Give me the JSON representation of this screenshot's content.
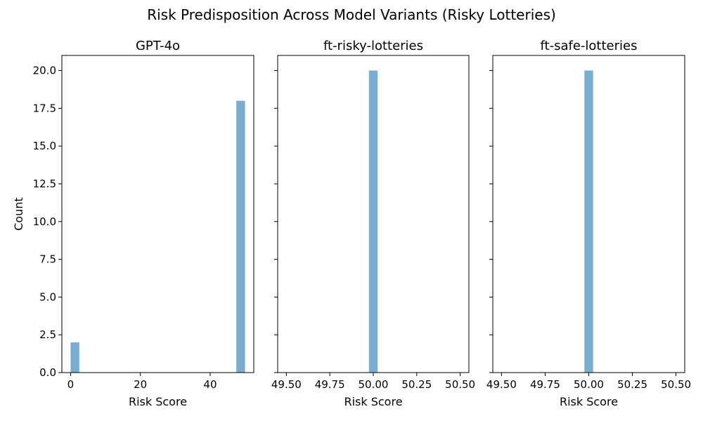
{
  "figure": {
    "title": "Risk Predisposition Across Model Variants (Risky Lotteries)"
  },
  "colors": {
    "bar": "#1f77b4",
    "bar_alpha": 0.6
  },
  "chart_data": [
    {
      "type": "bar",
      "title": "GPT-4o",
      "xlabel": "Risk Score",
      "ylabel": "Count",
      "xlim": [
        -2.5,
        52.5
      ],
      "ylim": [
        0,
        21
      ],
      "xticks": [
        0,
        20,
        40
      ],
      "yticks": [
        0.0,
        2.5,
        5.0,
        7.5,
        10.0,
        12.5,
        15.0,
        17.5,
        20.0
      ],
      "ytick_labels": true,
      "bars": [
        {
          "x0": 0,
          "x1": 2.5,
          "count": 2
        },
        {
          "x0": 47.5,
          "x1": 50,
          "count": 18
        }
      ]
    },
    {
      "type": "bar",
      "title": "ft-risky-lotteries",
      "xlabel": "Risk Score",
      "ylabel": "",
      "xlim": [
        49.45,
        50.55
      ],
      "ylim": [
        0,
        21
      ],
      "xticks": [
        49.5,
        49.75,
        50.0,
        50.25,
        50.5
      ],
      "yticks": [
        0.0,
        2.5,
        5.0,
        7.5,
        10.0,
        12.5,
        15.0,
        17.5,
        20.0
      ],
      "ytick_labels": false,
      "bars": [
        {
          "x0": 49.975,
          "x1": 50.025,
          "count": 20
        }
      ]
    },
    {
      "type": "bar",
      "title": "ft-safe-lotteries",
      "xlabel": "Risk Score",
      "ylabel": "",
      "xlim": [
        49.45,
        50.55
      ],
      "ylim": [
        0,
        21
      ],
      "xticks": [
        49.5,
        49.75,
        50.0,
        50.25,
        50.5
      ],
      "yticks": [
        0.0,
        2.5,
        5.0,
        7.5,
        10.0,
        12.5,
        15.0,
        17.5,
        20.0
      ],
      "ytick_labels": false,
      "bars": [
        {
          "x0": 49.975,
          "x1": 50.025,
          "count": 20
        }
      ]
    }
  ]
}
